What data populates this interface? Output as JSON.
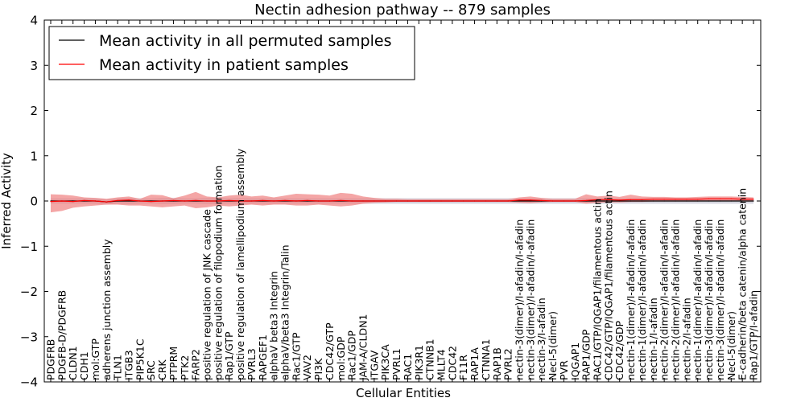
{
  "chart_data": {
    "type": "line",
    "title": "Nectin adhesion pathway -- 879 samples",
    "xlabel": "Cellular Entities",
    "ylabel": "Inferred Activity",
    "ylim": [
      -4,
      4
    ],
    "yticks": [
      -4,
      -3,
      -2,
      -1,
      0,
      1,
      2,
      3,
      4
    ],
    "ytick_labels": [
      "−4",
      "−3",
      "−2",
      "−1",
      "0",
      "1",
      "2",
      "3",
      "4"
    ],
    "legend_position": "top-left",
    "categories": [
      "PDGFRB",
      "PDGFB-D/PDGFRB",
      "CLDN1",
      "CDH1",
      "mol:GTP",
      "adherens junction assembly",
      "TLN1",
      "ITGB3",
      "PIP5K1C",
      "SRC",
      "CRK",
      "PTPRM",
      "PTK2",
      "FARP2",
      "positive regulation of JNK cascade",
      "positive regulation of filopodium formation",
      "Rap1/GTP",
      "positive regulation of lamellipodium assembly",
      "PVRL3",
      "RAPGEF1",
      "alphaV beta3 Integrin",
      "alphaV/beta3 Integrin/Talin",
      "Rac1/GTP",
      "VAV2",
      "PI3K",
      "CDC42/GTP",
      "mol:GDP",
      "Rac1/GDP",
      "JAM-A/CLDN1",
      "ITGAV",
      "PIK3CA",
      "PVRL1",
      "RAC1",
      "PIK3R1",
      "CTNNB1",
      "MLLT4",
      "CDC42",
      "F11R",
      "RAP1A",
      "CTNNA1",
      "RAP1B",
      "PVRL2",
      "nectin-3(dimer)/I-afadin/I-afadin",
      "nectin-3(dimer)/I-afadin/I-afadin",
      "nectin-3/I-afadin",
      "Necl-5(dimer)",
      "PVR",
      "IQGAP1",
      "RAP1/GDP",
      "RAC1/GTP/IQGAP1/filamentous actin",
      "CDC42/GTP/IQGAP1/filamentous actin",
      "CDC42/GDP",
      "nectin-1(dimer)/I-afadin/I-afadin",
      "nectin-1(dimer)/I-afadin/I-afadin",
      "nectin-1/I-afadin",
      "nectin-2(dimer)/I-afadin/I-afadin",
      "nectin-2(dimer)/I-afadin/I-afadin",
      "nectin-2/I-afadin",
      "nectin-1(dimer)/I-afadin/I-afadin",
      "nectin-3(dimer)/I-afadin/I-afadin",
      "nectin-3(dimer)/I-afadin/I-afadin",
      "Necl-5(dimer)",
      "E-cadherin/beta catenin/alpha catenin",
      "Rap1/GTP/I-afadin"
    ],
    "series": [
      {
        "name": "Mean activity in all permuted samples",
        "color": "#000000",
        "values": [
          0,
          0,
          0,
          0,
          0,
          -0.02,
          0,
          0,
          0,
          0,
          0,
          0,
          0,
          0,
          0,
          0,
          0,
          0,
          0,
          0,
          0,
          0,
          0,
          0,
          0,
          0,
          0,
          0,
          0,
          0,
          0,
          0,
          0,
          0,
          0,
          0,
          0,
          0,
          0,
          0,
          0,
          0,
          0,
          0,
          0,
          0,
          0,
          0,
          0,
          0,
          0,
          0,
          0,
          0,
          0,
          0,
          0,
          0,
          0,
          0,
          0,
          0,
          0,
          0
        ],
        "band_lower": [
          -0.06,
          -0.06,
          -0.06,
          -0.06,
          -0.06,
          -0.08,
          -0.06,
          -0.07,
          -0.06,
          -0.06,
          -0.07,
          -0.07,
          -0.06,
          -0.06,
          -0.07,
          -0.07,
          -0.06,
          -0.07,
          -0.06,
          -0.06,
          -0.06,
          -0.06,
          -0.06,
          -0.06,
          -0.06,
          -0.06,
          -0.06,
          -0.06,
          -0.06,
          -0.06,
          -0.06,
          -0.06,
          -0.06,
          -0.06,
          -0.06,
          -0.06,
          -0.06,
          -0.06,
          -0.06,
          -0.06,
          -0.06,
          -0.06,
          -0.06,
          -0.06,
          -0.06,
          -0.06,
          -0.06,
          -0.06,
          -0.06,
          -0.06,
          -0.06,
          -0.06,
          -0.06,
          -0.06,
          -0.06,
          -0.06,
          -0.06,
          -0.06,
          -0.06,
          -0.06,
          -0.06,
          -0.06,
          -0.06,
          -0.06
        ],
        "band_upper": [
          0.06,
          0.06,
          0.06,
          0.06,
          0.06,
          0.04,
          0.06,
          0.07,
          0.06,
          0.06,
          0.07,
          0.07,
          0.06,
          0.06,
          0.07,
          0.07,
          0.06,
          0.07,
          0.06,
          0.06,
          0.06,
          0.06,
          0.06,
          0.06,
          0.06,
          0.06,
          0.06,
          0.06,
          0.06,
          0.06,
          0.06,
          0.06,
          0.06,
          0.06,
          0.06,
          0.06,
          0.06,
          0.06,
          0.06,
          0.06,
          0.06,
          0.06,
          0.06,
          0.06,
          0.06,
          0.06,
          0.06,
          0.06,
          0.06,
          0.06,
          0.06,
          0.06,
          0.06,
          0.06,
          0.06,
          0.06,
          0.06,
          0.06,
          0.06,
          0.06,
          0.06,
          0.06,
          0.06,
          0.06
        ]
      },
      {
        "name": "Mean activity in patient samples",
        "color": "#ff0000",
        "values": [
          -0.01,
          0,
          -0.01,
          0.01,
          0,
          -0.02,
          0.01,
          0.02,
          0,
          -0.01,
          0,
          0.01,
          0,
          0.01,
          0,
          0,
          0.01,
          0,
          0,
          0.01,
          0,
          0.01,
          0,
          0.01,
          0,
          0,
          0.01,
          0,
          0,
          0,
          0,
          0,
          0,
          0,
          0,
          0,
          0,
          0,
          0,
          0,
          0,
          0,
          0.02,
          0.02,
          0.01,
          0,
          0,
          0,
          0.01,
          0.03,
          0.03,
          0.02,
          0.03,
          0.03,
          0.04,
          0.04,
          0.04,
          0.04,
          0.04,
          0.05,
          0.05,
          0.05,
          0.04,
          0.04
        ],
        "band_lower": [
          -0.25,
          -0.22,
          -0.15,
          -0.12,
          -0.1,
          -0.08,
          -0.08,
          -0.1,
          -0.1,
          -0.12,
          -0.14,
          -0.12,
          -0.1,
          -0.16,
          -0.14,
          -0.1,
          -0.12,
          -0.1,
          -0.08,
          -0.1,
          -0.08,
          -0.08,
          -0.1,
          -0.1,
          -0.08,
          -0.1,
          -0.12,
          -0.1,
          -0.06,
          -0.04,
          -0.03,
          -0.02,
          -0.02,
          -0.02,
          -0.02,
          -0.02,
          -0.02,
          -0.02,
          -0.02,
          -0.02,
          -0.02,
          -0.02,
          -0.04,
          -0.05,
          -0.03,
          -0.02,
          -0.02,
          -0.02,
          -0.06,
          -0.04,
          -0.03,
          -0.03,
          -0.02,
          -0.02,
          -0.01,
          -0.01,
          -0.01,
          -0.01,
          -0.01,
          0,
          0,
          0,
          -0.01,
          -0.01
        ],
        "band_upper": [
          0.15,
          0.14,
          0.12,
          0.08,
          0.07,
          0.05,
          0.08,
          0.1,
          0.05,
          0.14,
          0.13,
          0.06,
          0.12,
          0.2,
          0.1,
          0.08,
          0.12,
          0.14,
          0.1,
          0.12,
          0.08,
          0.12,
          0.16,
          0.15,
          0.14,
          0.12,
          0.18,
          0.16,
          0.1,
          0.07,
          0.05,
          0.05,
          0.04,
          0.04,
          0.04,
          0.04,
          0.04,
          0.04,
          0.04,
          0.04,
          0.04,
          0.04,
          0.08,
          0.1,
          0.07,
          0.05,
          0.05,
          0.05,
          0.15,
          0.1,
          0.12,
          0.09,
          0.14,
          0.1,
          0.09,
          0.09,
          0.08,
          0.08,
          0.09,
          0.1,
          0.1,
          0.1,
          0.09,
          0.08
        ]
      }
    ]
  }
}
